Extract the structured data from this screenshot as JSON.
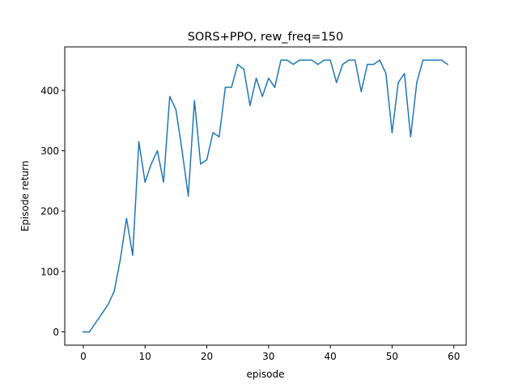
{
  "chart_data": {
    "type": "line",
    "title": "SORS+PPO, rew_freq=150",
    "xlabel": "episode",
    "ylabel": "Episode return",
    "xlim": [
      -3,
      62
    ],
    "ylim": [
      -22,
      472
    ],
    "xticks": [
      0,
      10,
      20,
      30,
      40,
      50,
      60
    ],
    "yticks": [
      0,
      100,
      200,
      300,
      400
    ],
    "grid": false,
    "series": [
      {
        "color": "#1f77b4",
        "x": [
          0,
          1,
          2,
          3,
          4,
          5,
          6,
          7,
          8,
          9,
          10,
          11,
          12,
          13,
          14,
          15,
          16,
          17,
          18,
          19,
          20,
          21,
          22,
          23,
          24,
          25,
          26,
          27,
          28,
          29,
          30,
          31,
          32,
          33,
          34,
          35,
          36,
          37,
          38,
          39,
          40,
          41,
          42,
          43,
          44,
          45,
          46,
          47,
          48,
          49,
          50,
          51,
          52,
          53,
          54,
          55,
          56,
          57,
          58,
          59
        ],
        "y": [
          0,
          0,
          15,
          30,
          45,
          67,
          120,
          188,
          127,
          315,
          248,
          278,
          300,
          248,
          390,
          368,
          300,
          225,
          383,
          278,
          285,
          330,
          323,
          405,
          405,
          443,
          435,
          375,
          420,
          390,
          420,
          405,
          450,
          450,
          443,
          450,
          450,
          450,
          443,
          450,
          450,
          413,
          443,
          450,
          450,
          398,
          443,
          443,
          450,
          428,
          330,
          413,
          428,
          323,
          413,
          450,
          450,
          450,
          450,
          443
        ]
      }
    ]
  }
}
